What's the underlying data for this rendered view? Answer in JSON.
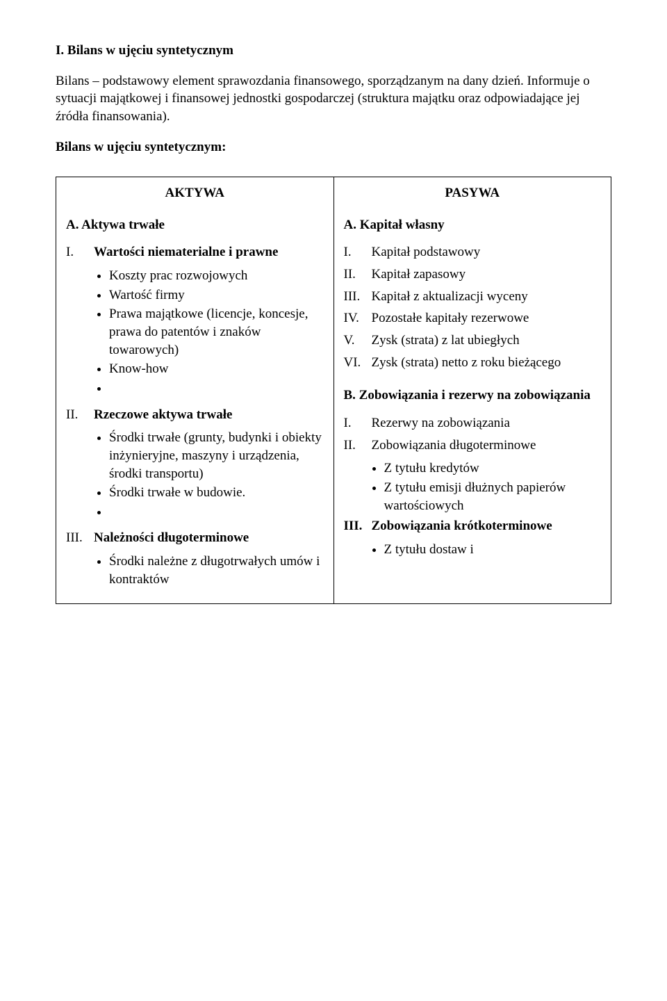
{
  "title": "I.  Bilans w ujęciu syntetycznym",
  "intro": "Bilans – podstawowy element sprawozdania finansowego, sporządzanym na dany dzień. Informuje o sytuacji majątkowej i finansowej jednostki gospodarczej (struktura majątku oraz odpowiadające jej źródła finansowania).",
  "subhead": "Bilans w ujęciu syntetycznym:",
  "left": {
    "heading": "AKTYWA",
    "section_a": "A. Aktywa trwałe",
    "i_label": "I.",
    "i_text": "Wartości niematerialne i prawne",
    "i_bullets": {
      "b1": "Koszty prac rozwojowych",
      "b2": "Wartość firmy",
      "b3": "Prawa majątkowe (licencje, koncesje, prawa do patentów i znaków towarowych)",
      "b4": "Know-how"
    },
    "ii_label": "II.",
    "ii_text": "Rzeczowe aktywa trwałe",
    "ii_bullets": {
      "b1": "Środki trwałe (grunty, budynki i obiekty inżynieryjne, maszyny i urządzenia, środki transportu)",
      "b2": "Środki trwałe w budowie."
    },
    "iii_label": "III.",
    "iii_text": "Należności długoterminowe",
    "iii_bullets": {
      "b1": "Środki należne z długotrwałych umów i kontraktów"
    }
  },
  "right": {
    "heading": "PASYWA",
    "section_a": "A. Kapitał własny",
    "a_items": {
      "i": "Kapitał podstawowy",
      "ii": "Kapitał zapasowy",
      "iii": "Kapitał z aktualizacji wyceny",
      "iv": "Pozostałe kapitały rezerwowe",
      "v": "Zysk (strata) z lat ubiegłych",
      "vi": "Zysk (strata) netto z roku bieżącego"
    },
    "a_labels": {
      "i": "I.",
      "ii": "II.",
      "iii": "III.",
      "iv": "IV.",
      "v": "V.",
      "vi": "VI."
    },
    "section_b": "B. Zobowiązania i rezerwy na zobowiązania",
    "b_i_label": "I.",
    "b_i_text": "Rezerwy na zobowiązania",
    "b_ii_label": "II.",
    "b_ii_text": "Zobowiązania długoterminowe",
    "b_ii_bullets": {
      "b1": "Z tytułu kredytów",
      "b2": "Z tytułu emisji dłużnych papierów wartościowych"
    },
    "b_iii_label": "III.",
    "b_iii_text": "Zobowiązania krótkoterminowe",
    "b_iii_bullets": {
      "b1": "Z tytułu dostaw i"
    }
  }
}
